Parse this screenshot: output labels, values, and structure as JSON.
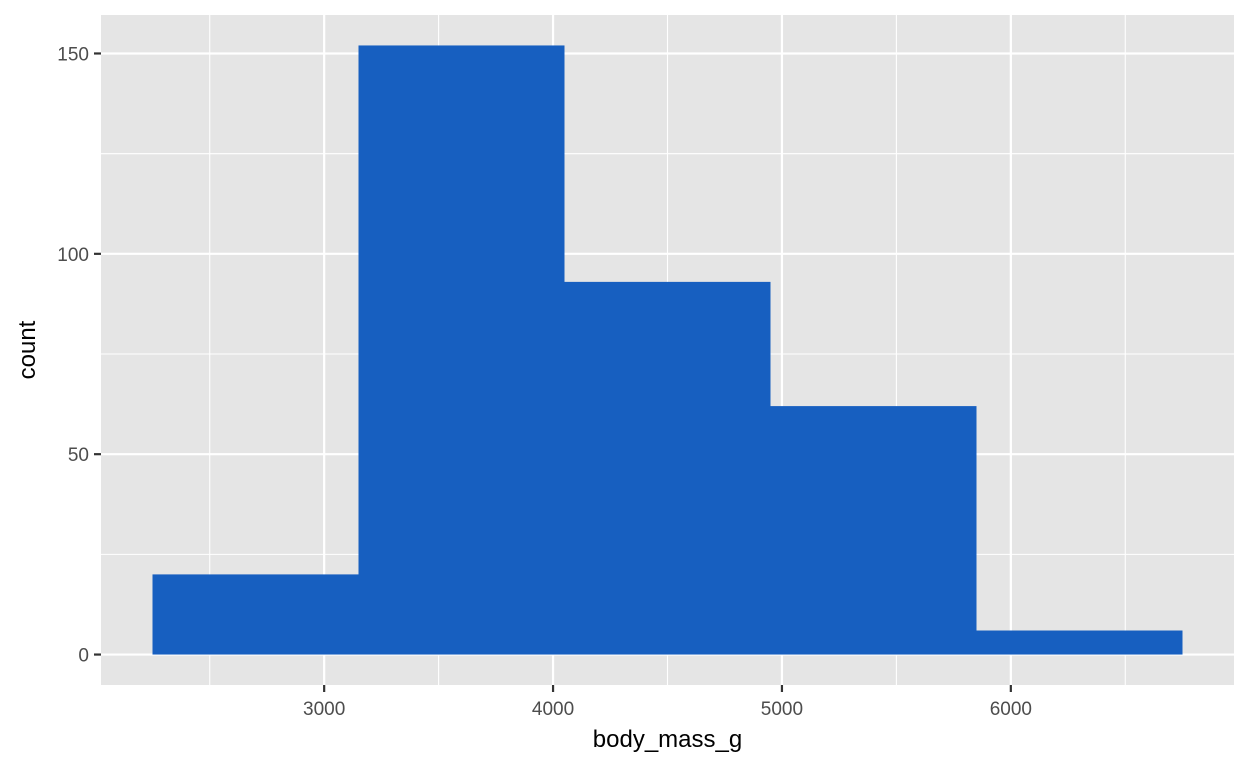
{
  "chart_data": {
    "type": "histogram",
    "xlabel": "body_mass_g",
    "ylabel": "count",
    "xlim": [
      2025,
      6975
    ],
    "ylim": [
      -7.6,
      159.6
    ],
    "x_ticks": [
      3000,
      4000,
      5000,
      6000
    ],
    "y_ticks": [
      0,
      50,
      100,
      150
    ],
    "grid": true,
    "bins": [
      {
        "x0": 2250,
        "x1": 3150,
        "count": 20
      },
      {
        "x0": 3150,
        "x1": 4050,
        "count": 152
      },
      {
        "x0": 4050,
        "x1": 4950,
        "count": 93
      },
      {
        "x0": 4950,
        "x1": 5850,
        "count": 62
      },
      {
        "x0": 5850,
        "x1": 6750,
        "count": 6
      }
    ],
    "colors": {
      "bar": "#175fc0",
      "panel": "#e5e5e5",
      "grid": "#ffffff"
    }
  }
}
